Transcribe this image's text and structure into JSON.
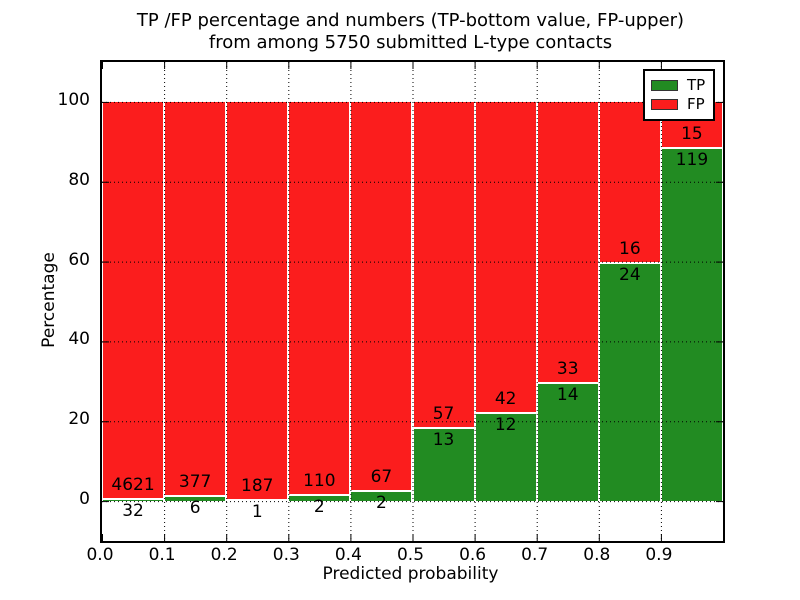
{
  "title": {
    "line1": "TP /FP percentage and numbers (TP-bottom value, FP-upper)",
    "line2": "from among 5750 submitted L-type contacts"
  },
  "axes": {
    "xlabel": "Predicted probability",
    "ylabel": "Percentage",
    "xtick_labels": [
      "0.0",
      "0.1",
      "0.2",
      "0.3",
      "0.4",
      "0.5",
      "0.6",
      "0.7",
      "0.8",
      "0.9"
    ],
    "ytick_labels": [
      "0",
      "20",
      "40",
      "60",
      "80",
      "100"
    ]
  },
  "legend": {
    "items": [
      {
        "label": "TP",
        "color": "#228b22"
      },
      {
        "label": "FP",
        "color": "#fb1d1d"
      }
    ]
  },
  "colors": {
    "tp_green": "#228b22",
    "fp_red": "#fb1d1d",
    "frame_black": "#000000",
    "background": "#ffffff"
  },
  "chart_data": {
    "type": "bar",
    "stacked": true,
    "normalized_to_percent": true,
    "title": "TP /FP percentage and numbers (TP-bottom value, FP-upper) from among 5750 submitted L-type contacts",
    "xlabel": "Predicted probability",
    "ylabel": "Percentage",
    "total_contacts": 5750,
    "bin_starts": [
      0.0,
      0.1,
      0.2,
      0.3,
      0.4,
      0.5,
      0.6,
      0.7,
      0.8,
      0.9
    ],
    "bin_width": 0.1,
    "series": [
      {
        "name": "TP",
        "color": "#228b22",
        "counts": [
          32,
          6,
          1,
          2,
          2,
          13,
          12,
          14,
          24,
          119
        ]
      },
      {
        "name": "FP",
        "color": "#fb1d1d",
        "counts": [
          4621,
          377,
          187,
          110,
          67,
          57,
          42,
          33,
          16,
          15
        ]
      }
    ],
    "tp_percent": [
      0.69,
      1.57,
      0.53,
      1.79,
      2.9,
      18.57,
      22.22,
      29.79,
      60.0,
      88.81
    ],
    "bar_total_percent": 100,
    "xlim": [
      0.0,
      1.0
    ],
    "ylim": [
      -10,
      110
    ],
    "xticks": [
      0.0,
      0.1,
      0.2,
      0.3,
      0.4,
      0.5,
      0.6,
      0.7,
      0.8,
      0.9
    ],
    "yticks": [
      0,
      20,
      40,
      60,
      80,
      100
    ],
    "grid": "dotted",
    "legend_position": "upper right",
    "annotation_note": "FP count printed above green/red boundary, TP count printed below it"
  }
}
